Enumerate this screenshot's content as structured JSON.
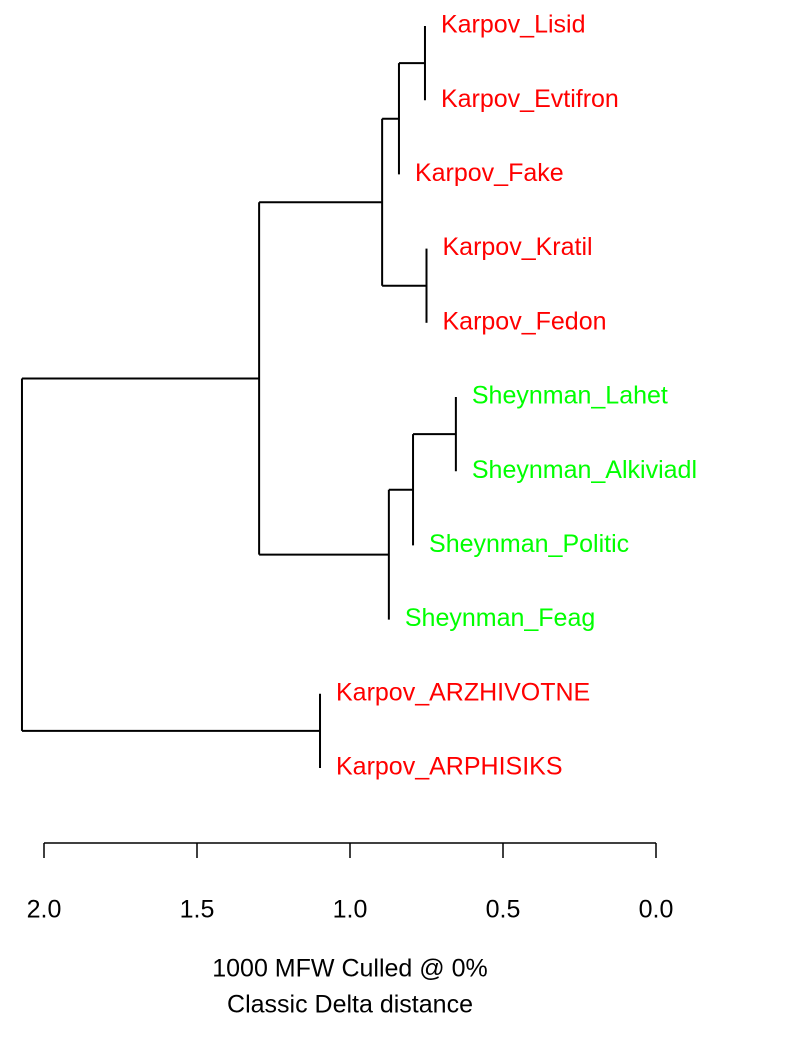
{
  "chart_data": {
    "type": "dendrogram",
    "leaves": [
      "Karpov_Lisid",
      "Karpov_Evtifron",
      "Karpov_Fake",
      "Karpov_Kratil",
      "Karpov_Fedon",
      "Sheynman_Lahet",
      "Sheynman_Alkiviadl",
      "Sheynman_Politic",
      "Sheynman_Feag",
      "Karpov_ARZHIVOTNE",
      "Karpov_ARPHISIKS"
    ],
    "leaf_colors": [
      "#ff0000",
      "#ff0000",
      "#ff0000",
      "#ff0000",
      "#ff0000",
      "#00ff00",
      "#00ff00",
      "#00ff00",
      "#00ff00",
      "#ff0000",
      "#ff0000"
    ],
    "merge": [
      [
        0,
        1
      ],
      [
        11,
        2
      ],
      [
        3,
        4
      ],
      [
        12,
        13
      ],
      [
        5,
        6
      ],
      [
        15,
        7
      ],
      [
        16,
        8
      ],
      [
        14,
        17
      ],
      [
        9,
        10
      ],
      [
        18,
        19
      ]
    ],
    "heights": [
      0.755,
      0.84,
      0.75,
      0.895,
      0.654,
      0.794,
      0.873,
      1.297,
      1.098,
      2.072
    ],
    "xlim": [
      2.0,
      0.0
    ],
    "xticks": [
      {
        "value": 2.0,
        "label": "2.0"
      },
      {
        "value": 1.5,
        "label": "1.5"
      },
      {
        "value": 1.0,
        "label": "1.0"
      },
      0.5,
      {
        "value": 0.0,
        "label": "0.0"
      }
    ],
    "xlabel": [
      "1000 MFW  Culled @ 0%",
      "Classic Delta distance"
    ],
    "line_color": "#000000"
  }
}
